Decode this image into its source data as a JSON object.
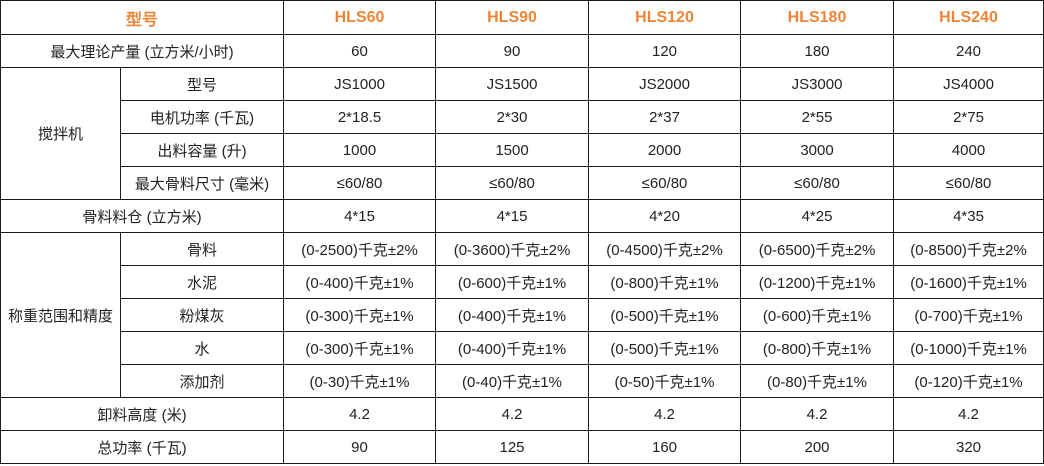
{
  "header": {
    "label": "型号",
    "models": [
      "HLS60",
      "HLS90",
      "HLS120",
      "HLS180",
      "HLS240"
    ]
  },
  "accent_color": "#ef8436",
  "rows": {
    "capacity": {
      "label": "最大理论产量 (立方米/小时)",
      "values": [
        "60",
        "90",
        "120",
        "180",
        "240"
      ]
    },
    "mixer": {
      "label": "搅拌机",
      "items": [
        {
          "label": "型号",
          "values": [
            "JS1000",
            "JS1500",
            "JS2000",
            "JS3000",
            "JS4000"
          ]
        },
        {
          "label": "电机功率 (千瓦)",
          "values": [
            "2*18.5",
            "2*30",
            "2*37",
            "2*55",
            "2*75"
          ]
        },
        {
          "label": "出料容量 (升)",
          "values": [
            "1000",
            "1500",
            "2000",
            "3000",
            "4000"
          ]
        },
        {
          "label": "最大骨料尺寸 (毫米)",
          "values": [
            "≤60/80",
            "≤60/80",
            "≤60/80",
            "≤60/80",
            "≤60/80"
          ]
        }
      ]
    },
    "bin": {
      "label": "骨料料仓 (立方米)",
      "values": [
        "4*15",
        "4*15",
        "4*20",
        "4*25",
        "4*35"
      ]
    },
    "weighing": {
      "label": "称重范围和精度",
      "items": [
        {
          "label": "骨料",
          "values": [
            "(0-2500)千克±2%",
            "(0-3600)千克±2%",
            "(0-4500)千克±2%",
            "(0-6500)千克±2%",
            "(0-8500)千克±2%"
          ]
        },
        {
          "label": "水泥",
          "values": [
            "(0-400)千克±1%",
            "(0-600)千克±1%",
            "(0-800)千克±1%",
            "(0-1200)千克±1%",
            "(0-1600)千克±1%"
          ]
        },
        {
          "label": "粉煤灰",
          "values": [
            "(0-300)千克±1%",
            "(0-400)千克±1%",
            "(0-500)千克±1%",
            "(0-600)千克±1%",
            "(0-700)千克±1%"
          ]
        },
        {
          "label": "水",
          "values": [
            "(0-300)千克±1%",
            "(0-400)千克±1%",
            "(0-500)千克±1%",
            "(0-800)千克±1%",
            "(0-1000)千克±1%"
          ]
        },
        {
          "label": "添加剂",
          "values": [
            "(0-30)千克±1%",
            "(0-40)千克±1%",
            "(0-50)千克±1%",
            "(0-80)千克±1%",
            "(0-120)千克±1%"
          ]
        }
      ]
    },
    "discharge_height": {
      "label": "卸料高度 (米)",
      "values": [
        "4.2",
        "4.2",
        "4.2",
        "4.2",
        "4.2"
      ]
    },
    "total_power": {
      "label": "总功率 (千瓦)",
      "values": [
        "90",
        "125",
        "160",
        "200",
        "320"
      ]
    }
  }
}
